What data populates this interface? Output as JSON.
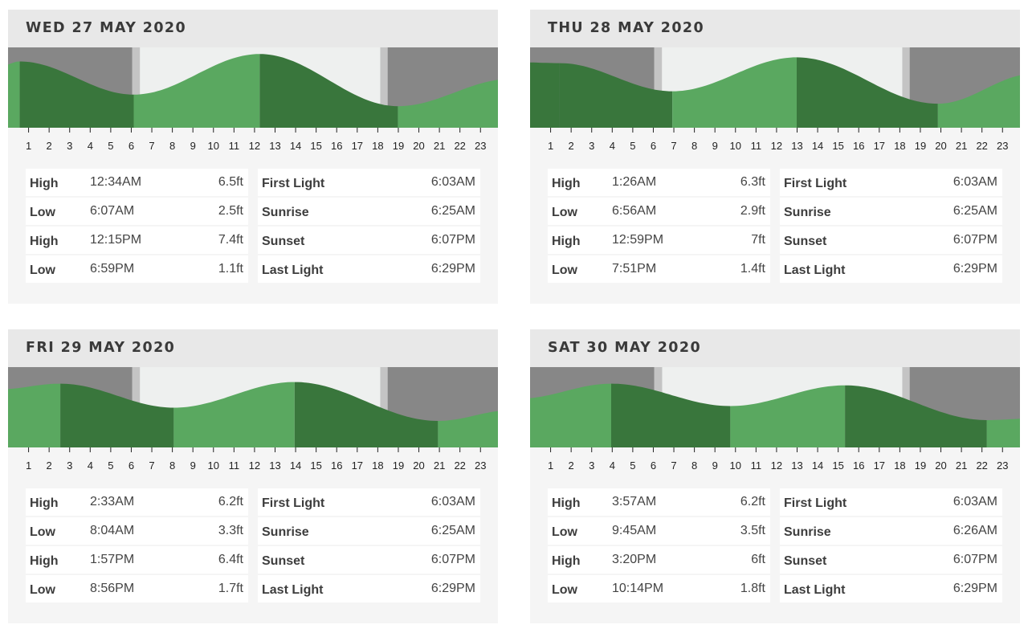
{
  "colors": {
    "night": "#878787",
    "twilight": "#c4c4c4",
    "day": "#eef0ef",
    "tide_light": "#5aa860",
    "tide_dark": "#39763c",
    "axis": "#222222"
  },
  "chart_data": [
    {
      "type": "area",
      "title": "WED 27 MAY 2020",
      "x_ticks": [
        "1",
        "2",
        "3",
        "4",
        "5",
        "6",
        "7",
        "8",
        "9",
        "10",
        "11",
        "12",
        "13",
        "14",
        "15",
        "16",
        "17",
        "18",
        "19",
        "20",
        "21",
        "22",
        "23"
      ],
      "tides": [
        {
          "type": "High",
          "time": "12:34AM",
          "height": "6.5ft",
          "h": 0.57,
          "v": 6.5
        },
        {
          "type": "Low",
          "time": "6:07AM",
          "height": "2.5ft",
          "h": 6.12,
          "v": 2.5
        },
        {
          "type": "High",
          "time": "12:15PM",
          "height": "7.4ft",
          "h": 12.25,
          "v": 7.4
        },
        {
          "type": "Low",
          "time": "6:59PM",
          "height": "1.1ft",
          "h": 18.98,
          "v": 1.1
        }
      ],
      "edge": {
        "start": 5.8,
        "end": 4.4
      },
      "sun": [
        {
          "label": "First Light",
          "value": "6:03AM",
          "h": 6.05
        },
        {
          "label": "Sunrise",
          "value": "6:25AM",
          "h": 6.42
        },
        {
          "label": "Sunset",
          "value": "6:07PM",
          "h": 18.12
        },
        {
          "label": "Last Light",
          "value": "6:29PM",
          "h": 18.48
        }
      ]
    },
    {
      "type": "area",
      "title": "THU 28 MAY 2020",
      "x_ticks": [
        "1",
        "2",
        "3",
        "4",
        "5",
        "6",
        "7",
        "8",
        "9",
        "10",
        "11",
        "12",
        "13",
        "14",
        "15",
        "16",
        "17",
        "18",
        "19",
        "20",
        "21",
        "22",
        "23"
      ],
      "tides": [
        {
          "type": "High",
          "time": "1:26AM",
          "height": "6.3ft",
          "h": 1.43,
          "v": 6.3
        },
        {
          "type": "Low",
          "time": "6:56AM",
          "height": "2.9ft",
          "h": 6.93,
          "v": 2.9
        },
        {
          "type": "High",
          "time": "12:59PM",
          "height": "7ft",
          "h": 12.98,
          "v": 7.0
        },
        {
          "type": "Low",
          "time": "7:51PM",
          "height": "1.4ft",
          "h": 19.85,
          "v": 1.4
        }
      ],
      "edge": {
        "start": 6.4,
        "end": 5.0
      },
      "sun": [
        {
          "label": "First Light",
          "value": "6:03AM",
          "h": 6.05
        },
        {
          "label": "Sunrise",
          "value": "6:25AM",
          "h": 6.42
        },
        {
          "label": "Sunset",
          "value": "6:07PM",
          "h": 18.12
        },
        {
          "label": "Last Light",
          "value": "6:29PM",
          "h": 18.48
        }
      ]
    },
    {
      "type": "area",
      "title": "FRI 29 MAY 2020",
      "x_ticks": [
        "1",
        "2",
        "3",
        "4",
        "5",
        "6",
        "7",
        "8",
        "9",
        "10",
        "11",
        "12",
        "13",
        "14",
        "15",
        "16",
        "17",
        "18",
        "19",
        "20",
        "21",
        "22",
        "23"
      ],
      "tides": [
        {
          "type": "High",
          "time": "2:33AM",
          "height": "6.2ft",
          "h": 2.55,
          "v": 6.2
        },
        {
          "type": "Low",
          "time": "8:04AM",
          "height": "3.3ft",
          "h": 8.07,
          "v": 3.3
        },
        {
          "type": "High",
          "time": "1:57PM",
          "height": "6.4ft",
          "h": 13.95,
          "v": 6.4
        },
        {
          "type": "Low",
          "time": "8:56PM",
          "height": "1.7ft",
          "h": 20.93,
          "v": 1.7
        }
      ],
      "edge": {
        "start": 5.5,
        "end": 3.0
      },
      "sun": [
        {
          "label": "First Light",
          "value": "6:03AM",
          "h": 6.05
        },
        {
          "label": "Sunrise",
          "value": "6:25AM",
          "h": 6.42
        },
        {
          "label": "Sunset",
          "value": "6:07PM",
          "h": 18.12
        },
        {
          "label": "Last Light",
          "value": "6:29PM",
          "h": 18.48
        }
      ]
    },
    {
      "type": "area",
      "title": "SAT 30 MAY 2020",
      "x_ticks": [
        "1",
        "2",
        "3",
        "4",
        "5",
        "6",
        "7",
        "8",
        "9",
        "10",
        "11",
        "12",
        "13",
        "14",
        "15",
        "16",
        "17",
        "18",
        "19",
        "20",
        "21",
        "22",
        "23"
      ],
      "tides": [
        {
          "type": "High",
          "time": "3:57AM",
          "height": "6.2ft",
          "h": 3.95,
          "v": 6.2
        },
        {
          "type": "Low",
          "time": "9:45AM",
          "height": "3.5ft",
          "h": 9.75,
          "v": 3.5
        },
        {
          "type": "High",
          "time": "3:20PM",
          "height": "6ft",
          "h": 15.33,
          "v": 6.0
        },
        {
          "type": "Low",
          "time": "10:14PM",
          "height": "1.8ft",
          "h": 22.23,
          "v": 1.8
        }
      ],
      "edge": {
        "start": 4.4,
        "end": 2.0
      },
      "sun": [
        {
          "label": "First Light",
          "value": "6:03AM",
          "h": 6.05
        },
        {
          "label": "Sunrise",
          "value": "6:26AM",
          "h": 6.43
        },
        {
          "label": "Sunset",
          "value": "6:07PM",
          "h": 18.12
        },
        {
          "label": "Last Light",
          "value": "6:29PM",
          "h": 18.48
        }
      ]
    }
  ]
}
